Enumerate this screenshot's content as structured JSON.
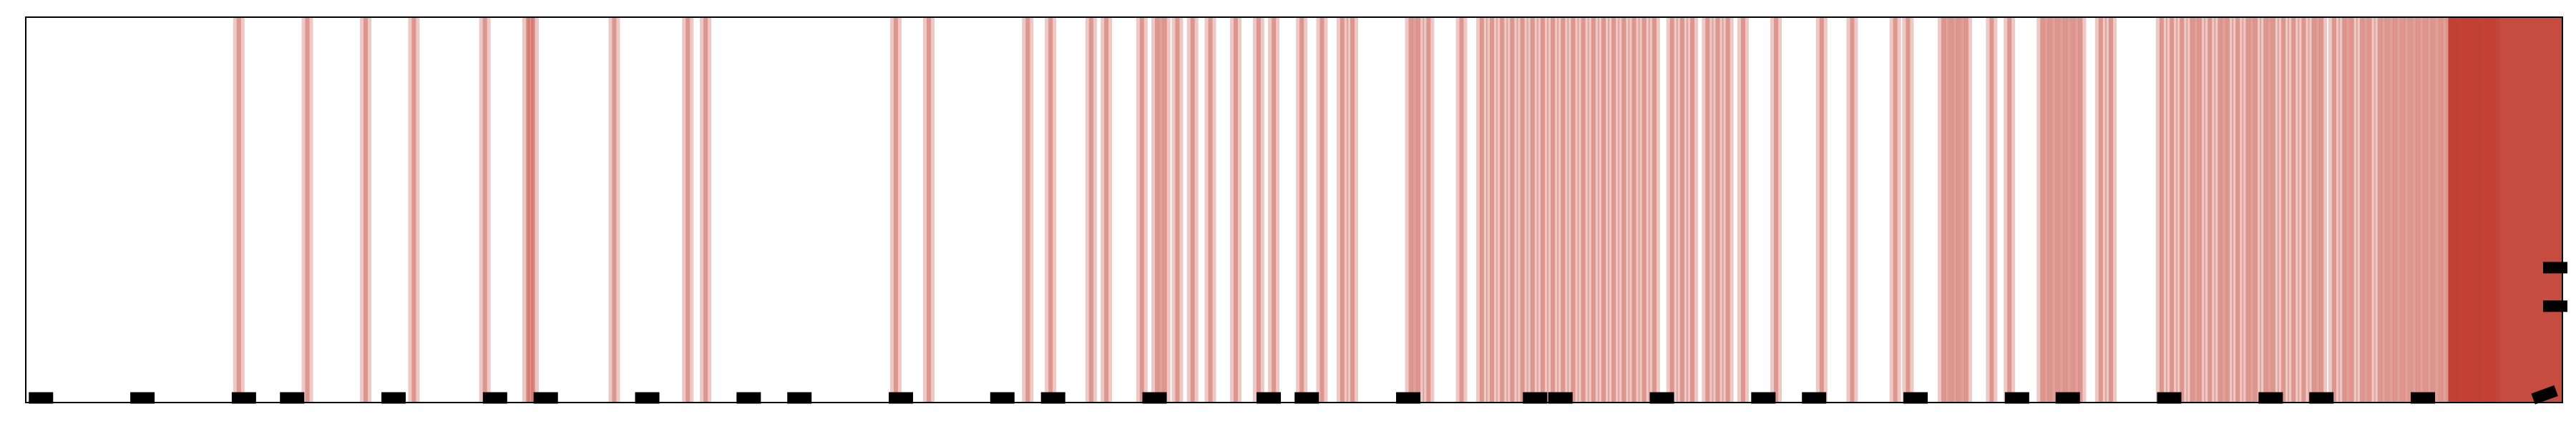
{
  "chart_data": {
    "type": "event-raster",
    "title": "",
    "xlabel": "",
    "ylabel": "",
    "xlim": [
      0,
      1
    ],
    "ylim": [
      0,
      1
    ],
    "grid": false,
    "legend": "none",
    "band_color": "#c0392b",
    "frame_color": "#000000",
    "events": [
      0.084,
      0.111,
      0.134,
      0.153,
      0.181,
      0.198,
      0.2,
      0.232,
      0.261,
      0.268,
      0.343,
      0.356,
      0.395,
      0.404,
      0.42,
      0.426,
      0.44,
      0.446,
      0.449,
      0.454,
      0.46,
      0.467,
      0.477,
      0.486,
      0.492,
      0.503,
      0.511,
      0.519,
      0.523,
      0.546,
      0.549,
      0.553,
      0.566,
      0.574,
      0.578,
      0.582,
      0.586,
      0.59,
      0.594,
      0.598,
      0.602,
      0.606,
      0.61,
      0.614,
      0.618,
      0.622,
      0.626,
      0.63,
      0.634,
      0.638,
      0.642,
      0.649,
      0.653,
      0.657,
      0.663,
      0.667,
      0.671,
      0.677,
      0.69,
      0.708,
      0.72,
      0.737,
      0.742,
      0.756,
      0.759,
      0.762,
      0.765,
      0.775,
      0.782,
      0.795,
      0.798,
      0.801,
      0.804,
      0.807,
      0.81,
      0.818,
      0.822,
      0.842,
      0.846,
      0.85,
      0.854,
      0.857,
      0.861,
      0.865,
      0.868,
      0.872,
      0.876,
      0.879,
      0.883,
      0.886,
      0.89,
      0.894,
      0.898,
      0.902,
      0.905,
      0.91,
      0.914,
      0.917,
      0.921,
      0.924,
      0.928,
      0.931,
      0.934,
      0.937,
      0.94,
      0.943,
      0.946,
      0.949,
      0.952,
      0.955,
      0.958,
      0.961,
      0.964,
      0.967,
      0.97,
      0.973
    ],
    "dense_region": [
      0.955,
      1.0
    ],
    "markers": [
      {
        "x": 0.006,
        "y": 0.012,
        "angle": 0
      },
      {
        "x": 0.046,
        "y": 0.012,
        "angle": 0
      },
      {
        "x": 0.086,
        "y": 0.012,
        "angle": 0
      },
      {
        "x": 0.105,
        "y": 0.012,
        "angle": 0
      },
      {
        "x": 0.145,
        "y": 0.012,
        "angle": 0
      },
      {
        "x": 0.185,
        "y": 0.012,
        "angle": 0
      },
      {
        "x": 0.205,
        "y": 0.012,
        "angle": 0
      },
      {
        "x": 0.245,
        "y": 0.012,
        "angle": 0
      },
      {
        "x": 0.285,
        "y": 0.012,
        "angle": 0
      },
      {
        "x": 0.305,
        "y": 0.012,
        "angle": 0
      },
      {
        "x": 0.345,
        "y": 0.012,
        "angle": 0
      },
      {
        "x": 0.385,
        "y": 0.012,
        "angle": 0
      },
      {
        "x": 0.405,
        "y": 0.012,
        "angle": 0
      },
      {
        "x": 0.445,
        "y": 0.012,
        "angle": 0
      },
      {
        "x": 0.49,
        "y": 0.012,
        "angle": 0
      },
      {
        "x": 0.505,
        "y": 0.012,
        "angle": 0
      },
      {
        "x": 0.545,
        "y": 0.012,
        "angle": 0
      },
      {
        "x": 0.595,
        "y": 0.012,
        "angle": 0
      },
      {
        "x": 0.605,
        "y": 0.012,
        "angle": 0
      },
      {
        "x": 0.645,
        "y": 0.012,
        "angle": 0
      },
      {
        "x": 0.685,
        "y": 0.012,
        "angle": 0
      },
      {
        "x": 0.705,
        "y": 0.012,
        "angle": 0
      },
      {
        "x": 0.745,
        "y": 0.012,
        "angle": 0
      },
      {
        "x": 0.785,
        "y": 0.012,
        "angle": 0
      },
      {
        "x": 0.805,
        "y": 0.012,
        "angle": 0
      },
      {
        "x": 0.845,
        "y": 0.012,
        "angle": 0
      },
      {
        "x": 0.885,
        "y": 0.012,
        "angle": 0
      },
      {
        "x": 0.905,
        "y": 0.012,
        "angle": 0
      },
      {
        "x": 0.945,
        "y": 0.012,
        "angle": 0
      },
      {
        "x": 0.993,
        "y": 0.02,
        "angle": -20
      },
      {
        "x": 0.999,
        "y": 0.25,
        "angle": 0
      },
      {
        "x": 0.999,
        "y": 0.35,
        "angle": 0
      }
    ]
  }
}
